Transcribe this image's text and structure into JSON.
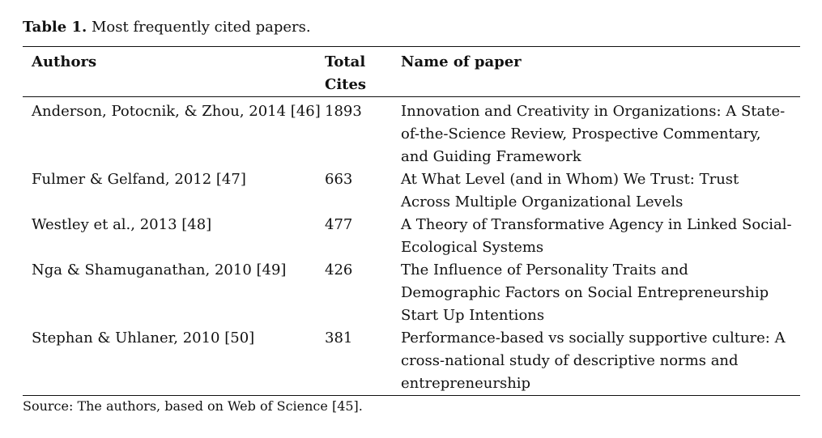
{
  "caption": {
    "label": "Table 1.",
    "text": " Most frequently cited papers."
  },
  "table": {
    "headers": {
      "authors": "Authors",
      "total_cites_line1": "Total",
      "total_cites_line2": "Cites",
      "name_of_paper": "Name of paper"
    },
    "rows": [
      {
        "authors": "Anderson, Potocnik, & Zhou, 2014 [46]",
        "cites": "1893",
        "title": "Innovation and Creativity in Organizations: A State-of-the-Science Review, Prospective Commentary, and Guiding Framework"
      },
      {
        "authors": "Fulmer & Gelfand, 2012 [47]",
        "cites": "663",
        "title": "At What Level (and in Whom) We Trust: Trust Across Multiple Organizational Levels"
      },
      {
        "authors": "Westley et al., 2013 [48]",
        "cites": "477",
        "title": "A Theory of Transformative Agency in Linked Social-Ecological Systems"
      },
      {
        "authors": "Nga & Shamuganathan, 2010 [49]",
        "cites": "426",
        "title": "The Influence of Personality Traits and Demographic Factors on Social Entrepreneurship Start Up Intentions"
      },
      {
        "authors": "Stephan & Uhlaner, 2010 [50]",
        "cites": "381",
        "title": "Performance-based vs socially supportive culture: A cross-national study of descriptive norms and entrepreneurship"
      }
    ]
  },
  "source": "Source: The authors, based on Web of Science [45]."
}
